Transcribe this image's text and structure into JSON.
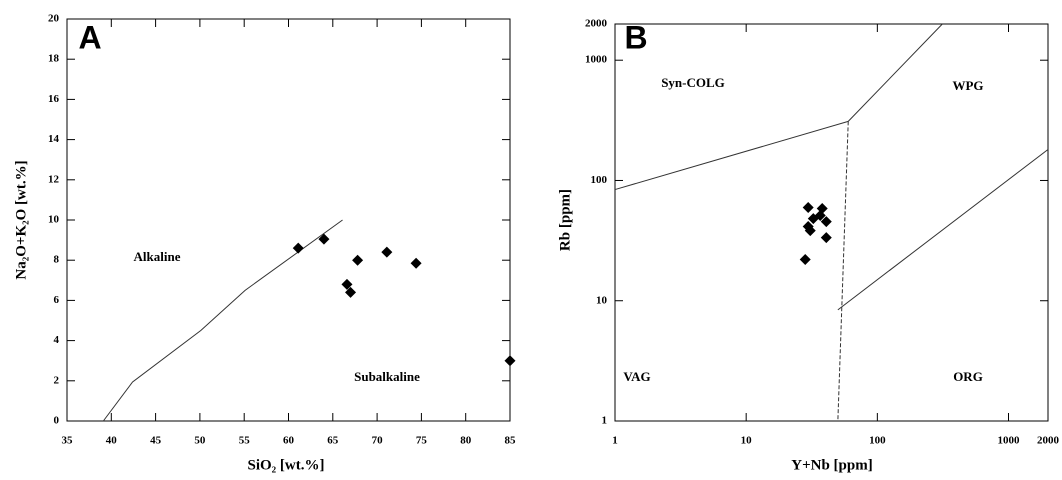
{
  "chart_data": [
    {
      "type": "scatter",
      "panel_label": "A",
      "xlabel": "SiO₂ [wt.%]",
      "ylabel": "Na₂O+K₂O [wt.%]",
      "scale": "linear",
      "xlim": [
        35,
        85
      ],
      "ylim": [
        0,
        20
      ],
      "xticks": [
        35,
        40,
        45,
        50,
        55,
        60,
        65,
        70,
        75,
        80,
        85
      ],
      "yticks": [
        0,
        2,
        4,
        6,
        8,
        10,
        12,
        14,
        16,
        18,
        20
      ],
      "series": [
        {
          "color": "#000000",
          "x": [
            61.1,
            64.0,
            67.8,
            66.6,
            67.0,
            71.1,
            74.4,
            85.0
          ],
          "values": [
            8.6,
            9.05,
            8.0,
            6.8,
            6.4,
            8.4,
            7.85,
            3.0
          ]
        }
      ],
      "boundaries": [
        {
          "x": [
            39.1,
            42.4,
            50.1,
            55.1,
            66.1
          ],
          "y": [
            0,
            1.94,
            4.5,
            6.5,
            10.0
          ],
          "dashed": false
        }
      ],
      "annotations": [
        "Alkaline",
        "Subalkaline"
      ]
    },
    {
      "type": "scatter",
      "panel_label": "B",
      "xlabel": "Y+Nb [ppm]",
      "ylabel": "Rb [ppm]",
      "scale": "log",
      "xlim": [
        1,
        2000
      ],
      "ylim": [
        1,
        2000
      ],
      "xticks": [
        1,
        10,
        100,
        1000,
        2000
      ],
      "yticks": [
        1,
        10,
        100,
        1000,
        2000
      ],
      "series": [
        {
          "color": "#000000",
          "x": [
            29.7,
            38.0,
            29.7,
            30.8,
            32.5,
            36.7,
            40.8,
            40.8,
            28.2
          ],
          "values": [
            59.6,
            58.4,
            41.4,
            38.3,
            48.2,
            51.1,
            45.5,
            33.5,
            22.0
          ]
        }
      ],
      "boundaries": [
        {
          "x": [
            1,
            60
          ],
          "y": [
            84,
            310
          ],
          "dashed": false
        },
        {
          "x": [
            60,
            313
          ],
          "y": [
            310,
            2000
          ],
          "dashed": false
        },
        {
          "x": [
            60,
            50
          ],
          "y": [
            310,
            1
          ],
          "dashed": true
        },
        {
          "x": [
            50,
            2000
          ],
          "y": [
            8.4,
            181
          ],
          "dashed": false
        }
      ],
      "annotations": [
        "Syn-COLG",
        "WPG",
        "VAG",
        "ORG"
      ]
    }
  ]
}
